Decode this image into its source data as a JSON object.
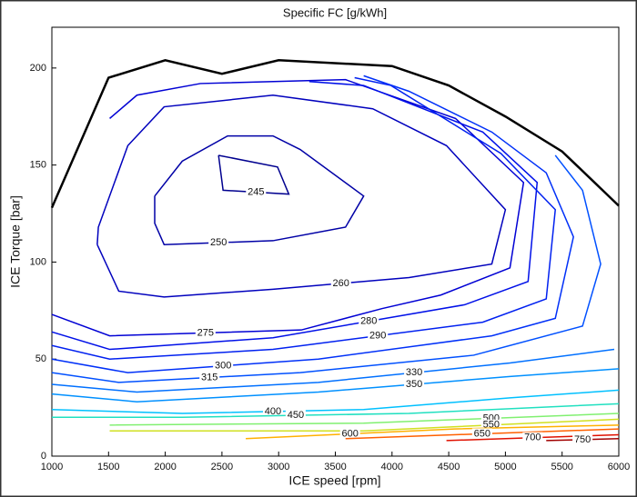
{
  "chart_data": {
    "type": "contour",
    "title": "Specific FC [g/kWh]",
    "x_label": "ICE speed [rpm]",
    "y_label": "ICE Torque [bar]",
    "xlim": [
      1000,
      6000
    ],
    "ylim": [
      0,
      221
    ],
    "xticks": [
      1000,
      1500,
      2000,
      2500,
      3000,
      3500,
      4000,
      4500,
      5000,
      5500,
      6000
    ],
    "yticks": [
      0,
      50,
      100,
      150,
      200
    ],
    "boundary": {
      "color": "#000000",
      "x": [
        1000,
        1500,
        2000,
        2500,
        3000,
        4000,
        4500,
        5000,
        5500,
        6000
      ],
      "y": [
        128,
        195,
        204,
        197,
        204,
        201,
        191,
        175,
        157,
        129
      ]
    },
    "series": [
      {
        "name": "245",
        "color": "#00008f",
        "x": [
          2470,
          2990,
          3090,
          2510,
          2470
        ],
        "y": [
          155,
          149,
          135,
          137,
          155
        ]
      },
      {
        "name": "250",
        "color": "#0000a6",
        "x": [
          1907,
          2150,
          2550,
          2950,
          3190,
          3750,
          3590,
          2950,
          1990,
          1907,
          1907
        ],
        "y": [
          134,
          152,
          165,
          165,
          158,
          134,
          118,
          111,
          109,
          120,
          134
        ]
      },
      {
        "name": "260",
        "color": "#0000bd",
        "x": [
          1400,
          1590,
          1990,
          2950,
          4150,
          4880,
          5000,
          4480,
          3830,
          2950,
          1990,
          1670,
          1410,
          1400
        ],
        "y": [
          109,
          85,
          82,
          86,
          92,
          99,
          127,
          160,
          179,
          186,
          180,
          160,
          118,
          109
        ]
      },
      {
        "name": "275",
        "color": "#0000d4",
        "x": [
          1000,
          1510,
          3200,
          3910,
          4430,
          5040,
          5160,
          4560,
          3590,
          2310,
          1750,
          1510
        ],
        "y": [
          73,
          62,
          65,
          76,
          83,
          97,
          141,
          174,
          194,
          192,
          186,
          174
        ]
      },
      {
        "name": "280",
        "color": "#0010e8",
        "x": [
          1000,
          1510,
          2950,
          4640,
          5200,
          5280,
          4800,
          3750,
          3270
        ],
        "y": [
          64,
          55,
          61,
          78,
          90,
          141,
          167,
          191,
          193
        ]
      },
      {
        "name": "290",
        "color": "#0020f0",
        "x": [
          1000,
          1510,
          2950,
          4800,
          5360,
          5440,
          4960,
          3990,
          3670
        ],
        "y": [
          57,
          50,
          55,
          69,
          81,
          127,
          156,
          191,
          195
        ]
      },
      {
        "name": "300",
        "color": "#0030f8",
        "x": [
          1000,
          1670,
          3350,
          4880,
          5440,
          5600,
          5360,
          4880,
          4150,
          3750
        ],
        "y": [
          50,
          43,
          50,
          62,
          71,
          113,
          146,
          167,
          188,
          196
        ]
      },
      {
        "name": "315",
        "color": "#0050ff",
        "x": [
          1000,
          1590,
          3190,
          4720,
          5680,
          5840,
          5680,
          5440
        ],
        "y": [
          43,
          38,
          43,
          52,
          67,
          99,
          137,
          155
        ]
      },
      {
        "name": "330",
        "color": "#0070ff",
        "x": [
          1000,
          1750,
          3350,
          5040,
          5960
        ],
        "y": [
          37,
          33,
          38,
          48,
          55
        ]
      },
      {
        "name": "350",
        "color": "#0090ff",
        "x": [
          1000,
          1750,
          3350,
          5040,
          6000
        ],
        "y": [
          32,
          28,
          33,
          41,
          45
        ]
      },
      {
        "name": "400",
        "color": "#00c0ff",
        "x": [
          1000,
          2150,
          3750,
          5040,
          6000
        ],
        "y": [
          24,
          22,
          24,
          30,
          34
        ]
      },
      {
        "name": "450",
        "color": "#20e0c0",
        "x": [
          1000,
          2150,
          4150,
          6000
        ],
        "y": [
          20,
          20,
          22,
          27
        ]
      },
      {
        "name": "500",
        "color": "#80f070",
        "x": [
          1510,
          3750,
          6000
        ],
        "y": [
          16,
          17,
          22
        ]
      },
      {
        "name": "550",
        "color": "#d0e020",
        "x": [
          1510,
          3750,
          6000
        ],
        "y": [
          13,
          13,
          19
        ]
      },
      {
        "name": "600",
        "color": "#ffb000",
        "x": [
          2710,
          4550,
          6000
        ],
        "y": [
          9,
          14,
          16
        ]
      },
      {
        "name": "650",
        "color": "#ff6000",
        "x": [
          3590,
          6000
        ],
        "y": [
          9,
          14
        ]
      },
      {
        "name": "700",
        "color": "#e01000",
        "x": [
          4480,
          6000
        ],
        "y": [
          8,
          11
        ]
      },
      {
        "name": "750",
        "color": "#a00000",
        "x": [
          5360,
          6000
        ],
        "y": [
          8,
          9
        ]
      }
    ]
  }
}
